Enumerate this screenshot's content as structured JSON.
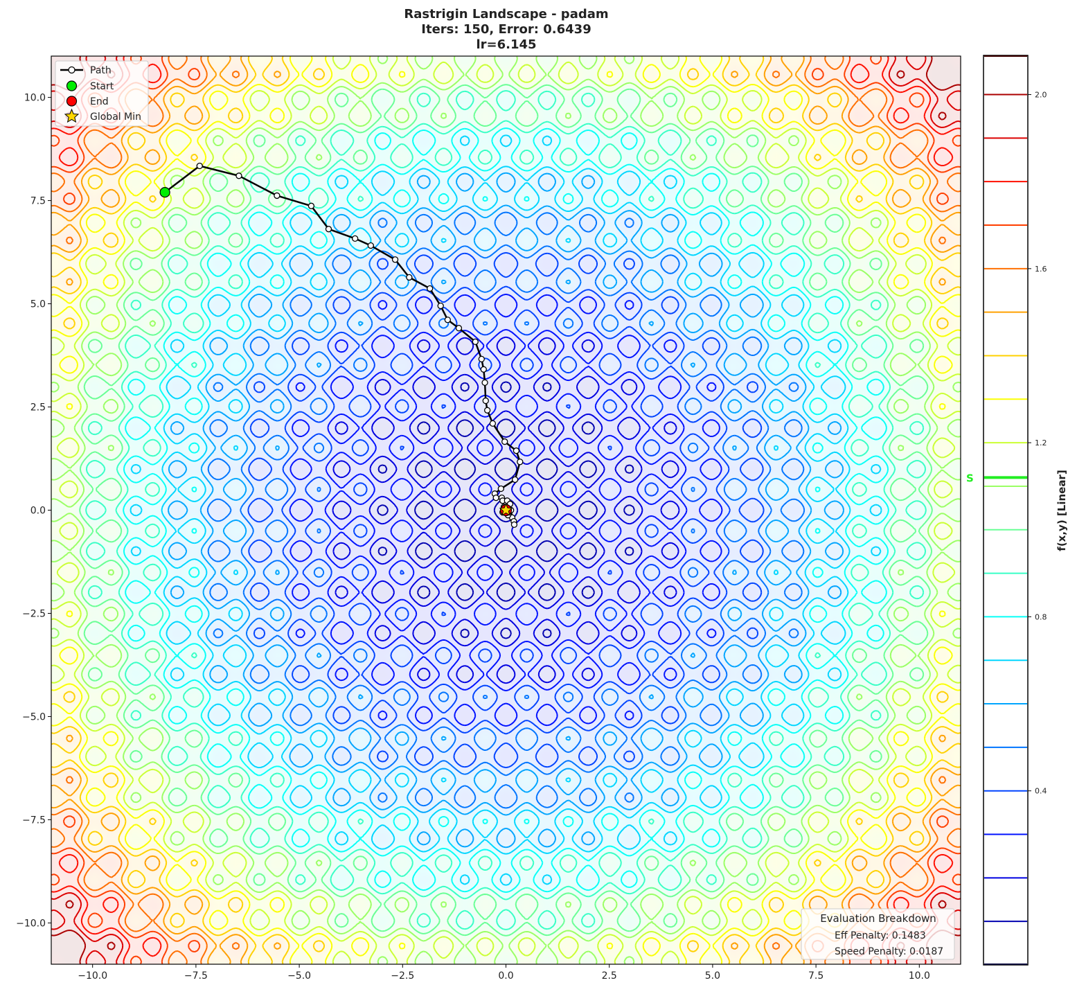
{
  "chart_data": {
    "type": "contour",
    "title_lines": [
      "Rastrigin Landscape - padam",
      "Iters: 150, Error: 0.6439",
      "lr=6.145"
    ],
    "xlim": [
      -11,
      11
    ],
    "ylim": [
      -11,
      11
    ],
    "x_ticks": [
      -10,
      -7.5,
      -5,
      -2.5,
      0,
      2.5,
      5,
      7.5,
      10
    ],
    "x_tick_labels": [
      "−10.0",
      "−7.5",
      "−5.0",
      "−2.5",
      "0.0",
      "2.5",
      "5.0",
      "7.5",
      "10.0"
    ],
    "y_ticks": [
      10,
      7.5,
      5,
      2.5,
      0,
      -2.5,
      -5,
      -7.5,
      -10
    ],
    "y_tick_labels": [
      "10.0",
      "7.5",
      "5.0",
      "2.5",
      "0.0",
      "−2.5",
      "−5.0",
      "−7.5",
      "−10.0"
    ],
    "grid": false,
    "colormap": "jet",
    "contour_levels": [
      0.1,
      0.2,
      0.3,
      0.4,
      0.5,
      0.6,
      0.7,
      0.8,
      0.9,
      1.0,
      1.1,
      1.2,
      1.3,
      1.4,
      1.5,
      1.6,
      1.7,
      1.8,
      1.9,
      2.0
    ],
    "colorbar": {
      "label": "f(x,y) [Linear]",
      "range": [
        0,
        2.09
      ],
      "ticks": [
        0.4,
        0.8,
        1.2,
        1.6,
        2.0
      ],
      "tick_labels": [
        "0.4",
        "0.8",
        "1.2",
        "1.6",
        "2.0"
      ],
      "marker_label": "S",
      "marker_value": 1.12,
      "marker_color": "#22ee22"
    },
    "path": [
      [
        -8.25,
        7.7
      ],
      [
        -7.41,
        8.34
      ],
      [
        -6.46,
        8.1
      ],
      [
        -5.54,
        7.62
      ],
      [
        -4.71,
        7.37
      ],
      [
        -4.29,
        6.81
      ],
      [
        -3.65,
        6.58
      ],
      [
        -3.27,
        6.41
      ],
      [
        -2.68,
        6.07
      ],
      [
        -2.34,
        5.64
      ],
      [
        -1.84,
        5.37
      ],
      [
        -1.58,
        4.95
      ],
      [
        -1.41,
        4.61
      ],
      [
        -1.14,
        4.41
      ],
      [
        -0.74,
        4.08
      ],
      [
        -0.59,
        3.66
      ],
      [
        -0.54,
        3.41
      ],
      [
        -0.51,
        3.09
      ],
      [
        -0.49,
        2.65
      ],
      [
        -0.45,
        2.42
      ],
      [
        -0.32,
        2.1
      ],
      [
        -0.03,
        1.66
      ],
      [
        0.25,
        1.44
      ],
      [
        0.34,
        1.17
      ],
      [
        0.22,
        0.74
      ],
      [
        -0.12,
        0.52
      ],
      [
        -0.27,
        0.4
      ],
      [
        -0.24,
        0.3
      ],
      [
        -0.1,
        0.3
      ],
      [
        -0.08,
        0.23
      ],
      [
        0.03,
        0.23
      ],
      [
        0.1,
        0.15
      ],
      [
        0.12,
        0.0
      ],
      [
        0.15,
        -0.18
      ],
      [
        0.19,
        -0.27
      ],
      [
        0.2,
        -0.35
      ],
      [
        0.05,
        -0.12
      ],
      [
        -0.08,
        -0.05
      ],
      [
        -0.05,
        0.08
      ],
      [
        0.0,
        0.0
      ]
    ],
    "start": [
      -8.25,
      7.7
    ],
    "end": [
      0.0,
      0.0
    ],
    "global_min": [
      0,
      0
    ],
    "legend": {
      "placement": "top-left",
      "entries": [
        "Path",
        "Start",
        "End",
        "Global Min"
      ]
    },
    "colors": {
      "path": "#000000",
      "start": "#00ee00",
      "end": "#ff0000",
      "global_min": "#ffd700"
    }
  },
  "evaluation": {
    "title": "Evaluation Breakdown",
    "lines": [
      "Eff Penalty: 0.1483",
      "Speed Penalty: 0.0187"
    ],
    "placement": "bottom-right"
  }
}
